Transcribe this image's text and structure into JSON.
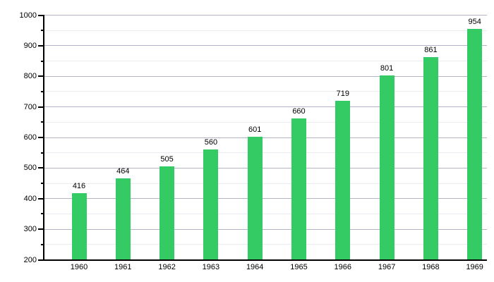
{
  "chart_data": {
    "type": "bar",
    "title": "",
    "categories": [
      "1960",
      "1961",
      "1962",
      "1963",
      "1964",
      "1965",
      "1966",
      "1967",
      "1968",
      "1969"
    ],
    "values": [
      416,
      464,
      505,
      560,
      601,
      660,
      719,
      801,
      861,
      954
    ],
    "xlabel": "",
    "ylabel": "",
    "ylim": [
      200,
      1000
    ],
    "y_major_tick_step": 100,
    "y_minor_tick_step": 50,
    "y_major_ticks": [
      200,
      300,
      400,
      500,
      600,
      700,
      800,
      900,
      1000
    ],
    "grid": true,
    "legend_position": "none",
    "value_labels_shown": true,
    "colors": {
      "bar_fill": "#34ca64",
      "major_gridline": "#b3b3c6",
      "minor_gridline": "#ebebf2",
      "axis": "#000000",
      "text": "#000000",
      "background": "#ffffff"
    }
  }
}
